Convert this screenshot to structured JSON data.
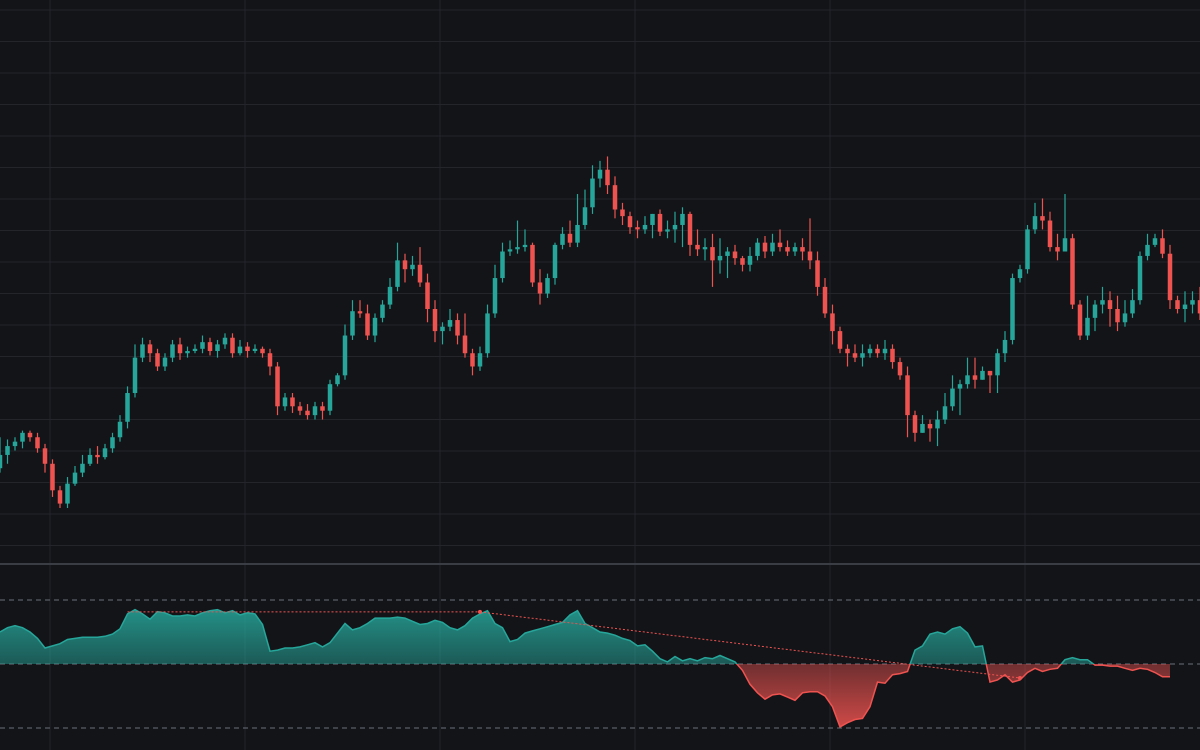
{
  "theme": {
    "background": "#131418",
    "grid": "#23252b",
    "up": "#26a69a",
    "down": "#ef5350",
    "separator": "#3a3d44",
    "level_line": "#6b6f78"
  },
  "chart_data": [
    {
      "type": "candlestick",
      "title": "",
      "xlabel": "",
      "ylabel": "",
      "y_axis_labels_visible": false,
      "grid": true,
      "ylim": [
        0,
        180
      ],
      "candles": [
        [
          18,
          24,
          32,
          16
        ],
        [
          24,
          28,
          31,
          20
        ],
        [
          28,
          30,
          32,
          26
        ],
        [
          30,
          34,
          35,
          27
        ],
        [
          34,
          32,
          35,
          30
        ],
        [
          32,
          27,
          34,
          25
        ],
        [
          27,
          20,
          29,
          16
        ],
        [
          20,
          8,
          22,
          5
        ],
        [
          8,
          2,
          10,
          0
        ],
        [
          2,
          11,
          14,
          0
        ],
        [
          11,
          16,
          19,
          10
        ],
        [
          16,
          20,
          24,
          14
        ],
        [
          20,
          24,
          27,
          19
        ],
        [
          24,
          23,
          28,
          20
        ],
        [
          23,
          27,
          29,
          22
        ],
        [
          27,
          32,
          34,
          25
        ],
        [
          32,
          39,
          42,
          30
        ],
        [
          39,
          52,
          55,
          36
        ],
        [
          52,
          68,
          74,
          50
        ],
        [
          68,
          74,
          77,
          66
        ],
        [
          74,
          70,
          76,
          66
        ],
        [
          70,
          64,
          72,
          62
        ],
        [
          64,
          68,
          70,
          62
        ],
        [
          68,
          74,
          76,
          66
        ],
        [
          74,
          70,
          77,
          67
        ],
        [
          70,
          71,
          73,
          68
        ],
        [
          71,
          72,
          74,
          70
        ],
        [
          72,
          75,
          78,
          70
        ],
        [
          75,
          71,
          77,
          69
        ],
        [
          71,
          74,
          76,
          68
        ],
        [
          74,
          77,
          79,
          72
        ],
        [
          77,
          70,
          79,
          68
        ],
        [
          70,
          73,
          76,
          69
        ],
        [
          73,
          71,
          75,
          68
        ],
        [
          71,
          72,
          74,
          70
        ],
        [
          72,
          70,
          73,
          68
        ],
        [
          70,
          64,
          72,
          60
        ],
        [
          64,
          46,
          66,
          42
        ],
        [
          46,
          50,
          52,
          44
        ],
        [
          50,
          46,
          52,
          43
        ],
        [
          46,
          44,
          48,
          42
        ],
        [
          44,
          42,
          47,
          40
        ],
        [
          42,
          46,
          48,
          40
        ],
        [
          46,
          44,
          48,
          40
        ],
        [
          44,
          56,
          58,
          42
        ],
        [
          56,
          60,
          61,
          55
        ],
        [
          60,
          78,
          83,
          58
        ],
        [
          78,
          89,
          94,
          76
        ],
        [
          89,
          88,
          94,
          86
        ],
        [
          88,
          78,
          92,
          76
        ],
        [
          78,
          86,
          88,
          75
        ],
        [
          86,
          92,
          94,
          84
        ],
        [
          92,
          100,
          104,
          90
        ],
        [
          100,
          112,
          120,
          98
        ],
        [
          112,
          108,
          115,
          102
        ],
        [
          108,
          110,
          114,
          105
        ],
        [
          110,
          102,
          118,
          100
        ],
        [
          102,
          90,
          106,
          84
        ],
        [
          90,
          80,
          94,
          75
        ],
        [
          80,
          82,
          84,
          74
        ],
        [
          82,
          85,
          90,
          80
        ],
        [
          85,
          78,
          88,
          74
        ],
        [
          78,
          70,
          88,
          68
        ],
        [
          70,
          64,
          72,
          60
        ],
        [
          64,
          70,
          73,
          62
        ],
        [
          70,
          88,
          92,
          68
        ],
        [
          88,
          104,
          110,
          86
        ],
        [
          104,
          116,
          120,
          102
        ],
        [
          116,
          117,
          121,
          114
        ],
        [
          117,
          118,
          130,
          115
        ],
        [
          118,
          119,
          126,
          116
        ],
        [
          119,
          102,
          120,
          100
        ],
        [
          102,
          97,
          108,
          92
        ],
        [
          97,
          104,
          106,
          95
        ],
        [
          104,
          119,
          120,
          101
        ],
        [
          119,
          124,
          127,
          117
        ],
        [
          124,
          120,
          130,
          118
        ],
        [
          120,
          128,
          142,
          118
        ],
        [
          128,
          136,
          144,
          126
        ],
        [
          136,
          149,
          155,
          133
        ],
        [
          149,
          153,
          157,
          145
        ],
        [
          153,
          146,
          159,
          142
        ],
        [
          146,
          135,
          150,
          131
        ],
        [
          135,
          132,
          138,
          128
        ],
        [
          132,
          127,
          134,
          124
        ],
        [
          127,
          126,
          130,
          122
        ],
        [
          126,
          128,
          132,
          124
        ],
        [
          128,
          133,
          133,
          122
        ],
        [
          133,
          125,
          135,
          123
        ],
        [
          125,
          126,
          130,
          122
        ],
        [
          126,
          128,
          134,
          120
        ],
        [
          128,
          133,
          136,
          118
        ],
        [
          133,
          119,
          134,
          114
        ],
        [
          119,
          117,
          126,
          114
        ],
        [
          117,
          118,
          122,
          112
        ],
        [
          118,
          112,
          124,
          100
        ],
        [
          112,
          114,
          122,
          106
        ],
        [
          114,
          116,
          118,
          104
        ],
        [
          116,
          113,
          119,
          110
        ],
        [
          113,
          110,
          114,
          107
        ],
        [
          110,
          114,
          118,
          107
        ],
        [
          114,
          120,
          122,
          112
        ],
        [
          120,
          116,
          123,
          113
        ],
        [
          116,
          120,
          124,
          114
        ],
        [
          120,
          118,
          126,
          116
        ],
        [
          118,
          116,
          121,
          114
        ],
        [
          116,
          118,
          120,
          114
        ],
        [
          118,
          116,
          122,
          112
        ],
        [
          116,
          112,
          131,
          108
        ],
        [
          112,
          100,
          116,
          96
        ],
        [
          100,
          88,
          104,
          86
        ],
        [
          88,
          80,
          92,
          74
        ],
        [
          80,
          72,
          82,
          70
        ],
        [
          72,
          70,
          74,
          64
        ],
        [
          70,
          68,
          74,
          66
        ],
        [
          68,
          70,
          74,
          64
        ],
        [
          70,
          72,
          74,
          68
        ],
        [
          72,
          70,
          74,
          68
        ],
        [
          70,
          72,
          76,
          67
        ],
        [
          72,
          66,
          74,
          63
        ],
        [
          66,
          60,
          68,
          58
        ],
        [
          60,
          42,
          64,
          32
        ],
        [
          42,
          34,
          44,
          30
        ],
        [
          34,
          38,
          42,
          34
        ],
        [
          38,
          36,
          40,
          30
        ],
        [
          36,
          40,
          44,
          28
        ],
        [
          40,
          46,
          52,
          38
        ],
        [
          46,
          54,
          60,
          44
        ],
        [
          54,
          56,
          58,
          42
        ],
        [
          56,
          60,
          68,
          54
        ],
        [
          60,
          58,
          68,
          54
        ],
        [
          58,
          62,
          64,
          58
        ],
        [
          62,
          60,
          62,
          52
        ],
        [
          60,
          70,
          72,
          52
        ],
        [
          70,
          76,
          80,
          66
        ],
        [
          76,
          104,
          106,
          74
        ],
        [
          104,
          108,
          110,
          102
        ],
        [
          108,
          126,
          128,
          106
        ],
        [
          126,
          132,
          138,
          124
        ],
        [
          132,
          130,
          140,
          126
        ],
        [
          130,
          118,
          134,
          116
        ],
        [
          118,
          116,
          124,
          112
        ],
        [
          116,
          122,
          142,
          118
        ],
        [
          122,
          92,
          124,
          90
        ],
        [
          92,
          78,
          94,
          76
        ],
        [
          78,
          86,
          96,
          76
        ],
        [
          86,
          92,
          94,
          80
        ],
        [
          92,
          94,
          100,
          88
        ],
        [
          94,
          90,
          98,
          82
        ],
        [
          90,
          84,
          96,
          80
        ],
        [
          84,
          88,
          94,
          82
        ],
        [
          88,
          94,
          99,
          86
        ],
        [
          94,
          114,
          116,
          92
        ],
        [
          114,
          119,
          124,
          112
        ],
        [
          119,
          122,
          124,
          118
        ],
        [
          122,
          115,
          126,
          113
        ],
        [
          115,
          94,
          119,
          90
        ],
        [
          94,
          90,
          96,
          88
        ],
        [
          90,
          92,
          98,
          84
        ],
        [
          92,
          94,
          98,
          88
        ],
        [
          94,
          88,
          100,
          85
        ],
        [
          88,
          82,
          92,
          80
        ],
        [
          82,
          80,
          84,
          78
        ],
        [
          80,
          74,
          84,
          66
        ],
        [
          74,
          76,
          78,
          68
        ],
        [
          76,
          80,
          90,
          70
        ],
        [
          80,
          86,
          92,
          74
        ],
        [
          86,
          82,
          88,
          78
        ],
        [
          82,
          72,
          94,
          70
        ],
        [
          72,
          68,
          80,
          64
        ]
      ]
    },
    {
      "type": "area",
      "title": "",
      "oscillator": true,
      "ylim": [
        -60,
        60
      ],
      "levels": [
        60,
        0,
        -60
      ],
      "values": [
        30,
        34,
        36,
        34,
        30,
        24,
        15,
        17,
        19,
        23,
        24,
        25,
        25,
        25,
        26,
        28,
        33,
        47,
        51,
        47,
        42,
        49,
        48,
        45,
        45,
        46,
        45,
        48,
        50,
        51,
        48,
        50,
        46,
        48,
        47,
        37,
        12,
        13,
        15,
        15,
        16,
        18,
        20,
        16,
        20,
        29,
        38,
        32,
        34,
        38,
        43,
        43,
        43,
        44,
        43,
        40,
        37,
        38,
        41,
        39,
        34,
        32,
        36,
        43,
        47,
        50,
        38,
        34,
        21,
        23,
        29,
        31,
        33,
        35,
        37,
        39,
        46,
        50,
        38,
        34,
        30,
        29,
        27,
        24,
        22,
        17,
        18,
        12,
        5,
        2,
        7,
        3,
        5,
        3,
        6,
        5,
        8,
        5,
        2,
        -6,
        -19,
        -27,
        -33,
        -29,
        -28,
        -31,
        -34,
        -27,
        -26,
        -26,
        -30,
        -40,
        -59,
        -55,
        -52,
        -51,
        -40,
        -17,
        -18,
        -10,
        -9,
        -7,
        13,
        17,
        28,
        30,
        28,
        33,
        35,
        29,
        16,
        17,
        -17,
        -15,
        -10,
        -17,
        -15,
        -8,
        -4,
        -7,
        -5,
        -4,
        4,
        6,
        4,
        4,
        -1,
        -1,
        -2,
        -2,
        -4,
        -6,
        -4,
        -5,
        -8,
        -12,
        -12
      ],
      "divergence_lines": [
        {
          "from_index": 17,
          "to_index": 64,
          "color": "down"
        },
        {
          "from_index": 64,
          "to_index": 136,
          "color": "down"
        }
      ]
    }
  ]
}
